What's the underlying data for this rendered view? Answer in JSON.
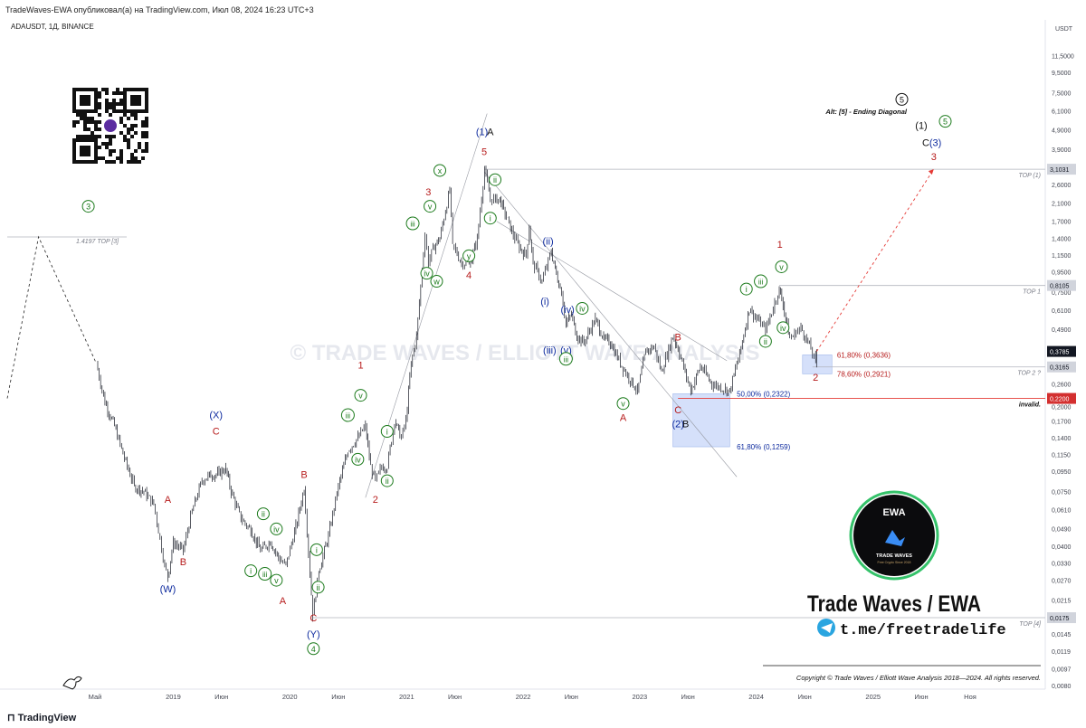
{
  "header": {
    "published_line": "TradeWaves-EWA опубликовал(а) на TradingView.com, Июл 08, 2024 16:23 UTC+3",
    "symbol_line": "ADAUSDT, 1Д, BINANCE"
  },
  "footer": {
    "tradingview_label": "TradingView"
  },
  "watermark": "© TRADE WAVES / ELLIOTT WAVE ANALYSIS",
  "branding": {
    "ewa_badge_title": "EWA",
    "ewa_badge_sub": "TRADE WAVES",
    "ewa_badge_tagline": "Free Crypto Since 2018",
    "trade_waves_title": "Trade Waves / EWA",
    "telegram_link": "t.me/freetradelife",
    "copyright": "Copyright © Trade Waves / Elliott Wave Analysis 2018—2024. All rights reserved."
  },
  "colors": {
    "candle": "#131722",
    "wave_red": "#b71c1c",
    "wave_blue": "#0d2a9e",
    "wave_green": "#1b7a1b",
    "level_line": "#b2b5be",
    "invalid_line": "#e53935",
    "fib_box": "#b3c7f5"
  },
  "chart_data": {
    "type": "candlestick",
    "symbol": "ADAUSDT",
    "timeframe": "1Д",
    "exchange": "BINANCE",
    "y_scale": "log",
    "y_unit": "USDT",
    "ylim": [
      0.008,
      16
    ],
    "y_ticks": [
      11.5,
      9.5,
      7.5,
      6.1,
      4.9,
      3.9,
      3.1,
      2.6,
      2.1,
      1.7,
      1.4,
      1.15,
      0.95,
      0.75,
      0.61,
      0.49,
      0.39,
      0.316,
      0.26,
      0.2,
      0.17,
      0.14,
      0.115,
      0.095,
      0.075,
      0.061,
      0.049,
      0.04,
      0.033,
      0.027,
      0.0215,
      0.0175,
      0.0145,
      0.0119,
      0.0097,
      0.008
    ],
    "y_tick_labels": [
      "11,5000",
      "9,5000",
      "7,5000",
      "6,1000",
      "4,9000",
      "3,9000",
      "3,1000",
      "2,6000",
      "2,1000",
      "1,7000",
      "1,4000",
      "1,1500",
      "0,9500",
      "0,7500",
      "0,6100",
      "0,4900",
      "0,3900",
      "0,3160",
      "0,2600",
      "0,2000",
      "0,1700",
      "0,1400",
      "0,1150",
      "0,0950",
      "0,0750",
      "0,0610",
      "0,0490",
      "0,0400",
      "0,0330",
      "0,0270",
      "0,0215",
      "0,0175",
      "0,0145",
      "0,0119",
      "0,0097",
      "0,0080"
    ],
    "x_ticks": [
      {
        "date": "2018-05-01",
        "label": "Май"
      },
      {
        "date": "2019-01-01",
        "label": "2019"
      },
      {
        "date": "2019-06-01",
        "label": "Июн"
      },
      {
        "date": "2020-01-01",
        "label": "2020"
      },
      {
        "date": "2020-06-01",
        "label": "Июн"
      },
      {
        "date": "2021-01-01",
        "label": "2021"
      },
      {
        "date": "2021-06-01",
        "label": "Июн"
      },
      {
        "date": "2022-01-01",
        "label": "2022"
      },
      {
        "date": "2022-06-01",
        "label": "Июн"
      },
      {
        "date": "2023-01-01",
        "label": "2023"
      },
      {
        "date": "2023-06-01",
        "label": "Июн"
      },
      {
        "date": "2024-01-01",
        "label": "2024"
      },
      {
        "date": "2024-06-01",
        "label": "Июн"
      },
      {
        "date": "2025-01-01",
        "label": "2025"
      },
      {
        "date": "2025-06-01",
        "label": "Июн"
      },
      {
        "date": "2025-11-01",
        "label": "Ноя"
      }
    ],
    "price_path": [
      [
        "2018-05-05",
        0.33
      ],
      [
        "2018-06-01",
        0.21
      ],
      [
        "2018-07-01",
        0.16
      ],
      [
        "2018-08-01",
        0.11
      ],
      [
        "2018-09-01",
        0.08
      ],
      [
        "2018-10-01",
        0.075
      ],
      [
        "2018-11-01",
        0.065
      ],
      [
        "2018-12-05",
        0.032
      ],
      [
        "2018-12-15",
        0.028
      ],
      [
        "2019-01-01",
        0.042
      ],
      [
        "2019-02-01",
        0.038
      ],
      [
        "2019-03-01",
        0.06
      ],
      [
        "2019-04-01",
        0.085
      ],
      [
        "2019-04-20",
        0.09
      ],
      [
        "2019-05-20",
        0.092
      ],
      [
        "2019-06-15",
        0.098
      ],
      [
        "2019-07-01",
        0.075
      ],
      [
        "2019-08-01",
        0.055
      ],
      [
        "2019-09-01",
        0.048
      ],
      [
        "2019-10-01",
        0.038
      ],
      [
        "2019-11-01",
        0.042
      ],
      [
        "2019-12-01",
        0.034
      ],
      [
        "2019-12-20",
        0.032
      ],
      [
        "2020-01-20",
        0.05
      ],
      [
        "2020-02-15",
        0.078
      ],
      [
        "2020-03-13",
        0.018
      ],
      [
        "2020-04-01",
        0.03
      ],
      [
        "2020-05-01",
        0.045
      ],
      [
        "2020-06-01",
        0.08
      ],
      [
        "2020-07-01",
        0.12
      ],
      [
        "2020-08-01",
        0.14
      ],
      [
        "2020-08-25",
        0.16
      ],
      [
        "2020-09-10",
        0.1
      ],
      [
        "2020-09-25",
        0.085
      ],
      [
        "2020-10-15",
        0.1
      ],
      [
        "2020-11-01",
        0.1
      ],
      [
        "2020-11-24",
        0.17
      ],
      [
        "2020-12-15",
        0.14
      ],
      [
        "2020-12-30",
        0.17
      ],
      [
        "2021-01-15",
        0.33
      ],
      [
        "2021-02-01",
        0.45
      ],
      [
        "2021-02-27",
        1.45
      ],
      [
        "2021-03-10",
        1.05
      ],
      [
        "2021-03-25",
        1.25
      ],
      [
        "2021-04-15",
        1.4
      ],
      [
        "2021-05-16",
        2.45
      ],
      [
        "2021-05-25",
        1.3
      ],
      [
        "2021-06-22",
        1.05
      ],
      [
        "2021-07-20",
        1.05
      ],
      [
        "2021-08-10",
        1.4
      ],
      [
        "2021-09-02",
        3.1
      ],
      [
        "2021-09-20",
        2.2
      ],
      [
        "2021-10-01",
        2.2
      ],
      [
        "2021-10-20",
        2.2
      ],
      [
        "2021-11-01",
        1.95
      ],
      [
        "2021-12-01",
        1.45
      ],
      [
        "2021-12-20",
        1.25
      ],
      [
        "2022-01-10",
        1.15
      ],
      [
        "2022-01-20",
        1.6
      ],
      [
        "2022-02-01",
        1.05
      ],
      [
        "2022-03-01",
        0.85
      ],
      [
        "2022-03-30",
        1.2
      ],
      [
        "2022-04-15",
        0.92
      ],
      [
        "2022-05-01",
        0.75
      ],
      [
        "2022-05-15",
        0.52
      ],
      [
        "2022-06-01",
        0.58
      ],
      [
        "2022-06-18",
        0.45
      ],
      [
        "2022-07-10",
        0.42
      ],
      [
        "2022-08-15",
        0.55
      ],
      [
        "2022-09-10",
        0.44
      ],
      [
        "2022-10-01",
        0.42
      ],
      [
        "2022-11-10",
        0.31
      ],
      [
        "2022-12-25",
        0.24
      ],
      [
        "2023-01-20",
        0.38
      ],
      [
        "2023-02-15",
        0.4
      ],
      [
        "2023-03-10",
        0.3
      ],
      [
        "2023-04-15",
        0.45
      ],
      [
        "2023-05-01",
        0.39
      ],
      [
        "2023-06-10",
        0.24
      ],
      [
        "2023-07-10",
        0.32
      ],
      [
        "2023-08-15",
        0.26
      ],
      [
        "2023-10-10",
        0.24
      ],
      [
        "2023-11-10",
        0.37
      ],
      [
        "2023-12-10",
        0.62
      ],
      [
        "2024-01-15",
        0.52
      ],
      [
        "2024-01-30",
        0.48
      ],
      [
        "2024-03-13",
        0.78
      ],
      [
        "2024-03-25",
        0.65
      ],
      [
        "2024-04-15",
        0.44
      ],
      [
        "2024-05-05",
        0.47
      ],
      [
        "2024-05-20",
        0.5
      ],
      [
        "2024-06-20",
        0.39
      ],
      [
        "2024-07-05",
        0.33
      ],
      [
        "2024-07-08",
        0.3785
      ]
    ],
    "current_price": 0.3785,
    "price_labels": [
      {
        "text": "USDT",
        "kind": "unit"
      },
      {
        "text": "3,1031",
        "price": 3.1031,
        "kind": "level"
      },
      {
        "text": "0,8105",
        "price": 0.8105,
        "kind": "level"
      },
      {
        "text": "0,3785",
        "price": 0.3785,
        "kind": "current"
      },
      {
        "text": "0,3165",
        "price": 0.3165,
        "kind": "level"
      },
      {
        "text": "0,2200",
        "price": 0.22,
        "kind": "invalid"
      },
      {
        "text": "0,0175",
        "price": 0.0175,
        "kind": "level"
      }
    ],
    "levels": [
      {
        "label": "1.4197 TOP [3]",
        "price": 1.4197
      },
      {
        "label": "TOP (1)",
        "price": 3.1031
      },
      {
        "label": "TOP 1",
        "price": 0.8105
      },
      {
        "label": "TOP 2 ?",
        "price": 0.3165
      },
      {
        "label": "invalid.",
        "price": 0.22
      },
      {
        "label": "TOP [4]",
        "price": 0.0175
      }
    ],
    "fib_zones": [
      {
        "from": 0.3636,
        "to": 0.2921,
        "upper_label": "61,80% (0,3636)",
        "lower_label": "78,60% (0,2921)"
      },
      {
        "from": 0.2322,
        "to": 0.1259,
        "upper_label": "50,00% (0,2322)",
        "lower_label": "61,80% (0,1259)"
      }
    ],
    "annotation_title": "Alt: [5] - Ending Diagonal",
    "wave_labels": [
      {
        "text": "3",
        "color": "green",
        "circle": true,
        "date": "2018-04-10",
        "price": 1.95
      },
      {
        "text": "(W)",
        "color": "blue",
        "date": "2018-12-15",
        "price": 0.0235
      },
      {
        "text": "A",
        "color": "red",
        "date": "2018-12-15",
        "price": 0.066
      },
      {
        "text": "B",
        "color": "red",
        "date": "2019-02-01",
        "price": 0.032
      },
      {
        "text": "(X)",
        "color": "blue",
        "date": "2019-05-15",
        "price": 0.175
      },
      {
        "text": "C",
        "color": "red",
        "date": "2019-05-15",
        "price": 0.145
      },
      {
        "text": "i",
        "color": "green",
        "circle": true,
        "date": "2019-09-01",
        "price": 0.029
      },
      {
        "text": "ii",
        "color": "green",
        "circle": true,
        "date": "2019-10-10",
        "price": 0.056
      },
      {
        "text": "iii",
        "color": "green",
        "circle": true,
        "date": "2019-10-15",
        "price": 0.028
      },
      {
        "text": "iv",
        "color": "green",
        "circle": true,
        "date": "2019-11-20",
        "price": 0.047
      },
      {
        "text": "v",
        "color": "green",
        "circle": true,
        "date": "2019-11-20",
        "price": 0.026
      },
      {
        "text": "A",
        "color": "red",
        "date": "2019-12-10",
        "price": 0.0205
      },
      {
        "text": "B",
        "color": "red",
        "date": "2020-02-15",
        "price": 0.088
      },
      {
        "text": "C",
        "color": "red",
        "date": "2020-03-15",
        "price": 0.0168
      },
      {
        "text": "(Y)",
        "color": "blue",
        "date": "2020-03-15",
        "price": 0.0139
      },
      {
        "text": "4",
        "color": "green",
        "circle": true,
        "date": "2020-03-15",
        "price": 0.0118
      },
      {
        "text": "i",
        "color": "green",
        "circle": true,
        "date": "2020-03-25",
        "price": 0.037
      },
      {
        "text": "ii",
        "color": "green",
        "circle": true,
        "date": "2020-03-30",
        "price": 0.024
      },
      {
        "text": "1",
        "color": "red",
        "date": "2020-08-10",
        "price": 0.31
      },
      {
        "text": "v",
        "color": "green",
        "circle": true,
        "date": "2020-08-10",
        "price": 0.22
      },
      {
        "text": "iii",
        "color": "green",
        "circle": true,
        "date": "2020-07-01",
        "price": 0.175
      },
      {
        "text": "iv",
        "color": "green",
        "circle": true,
        "date": "2020-08-01",
        "price": 0.105
      },
      {
        "text": "i",
        "color": "green",
        "circle": true,
        "date": "2020-11-01",
        "price": 0.145
      },
      {
        "text": "ii",
        "color": "green",
        "circle": true,
        "date": "2020-11-01",
        "price": 0.082
      },
      {
        "text": "2",
        "color": "red",
        "date": "2020-09-25",
        "price": 0.066
      },
      {
        "text": "iii",
        "color": "green",
        "circle": true,
        "date": "2021-01-20",
        "price": 1.6
      },
      {
        "text": "iv",
        "color": "green",
        "circle": true,
        "date": "2021-03-05",
        "price": 0.9
      },
      {
        "text": "v",
        "color": "green",
        "circle": true,
        "date": "2021-03-15",
        "price": 1.95
      },
      {
        "text": "w",
        "color": "green",
        "circle": true,
        "date": "2021-04-05",
        "price": 0.82
      },
      {
        "text": "x",
        "color": "green",
        "circle": true,
        "date": "2021-04-15",
        "price": 2.95
      },
      {
        "text": "3",
        "color": "red",
        "date": "2021-03-10",
        "price": 2.3
      },
      {
        "text": "y",
        "color": "green",
        "circle": true,
        "date": "2021-07-15",
        "price": 1.1
      },
      {
        "text": "4",
        "color": "red",
        "date": "2021-07-15",
        "price": 0.88
      },
      {
        "text": "5",
        "color": "red",
        "date": "2021-09-01",
        "price": 3.65
      },
      {
        "text": "(1)",
        "color": "blue",
        "date": "2021-08-25",
        "price": 4.6
      },
      {
        "text": "A",
        "color": "black",
        "date": "2021-09-20",
        "price": 4.6
      },
      {
        "text": "ii",
        "color": "green",
        "circle": true,
        "date": "2021-10-05",
        "price": 2.65
      },
      {
        "text": "i",
        "color": "green",
        "circle": true,
        "date": "2021-09-20",
        "price": 1.7
      },
      {
        "text": "(ii)",
        "color": "blue",
        "date": "2022-03-20",
        "price": 1.3
      },
      {
        "text": "(i)",
        "color": "blue",
        "date": "2022-03-10",
        "price": 0.65
      },
      {
        "text": "(iv)",
        "color": "blue",
        "date": "2022-05-20",
        "price": 0.59
      },
      {
        "text": "iv",
        "color": "green",
        "circle": true,
        "date": "2022-07-05",
        "price": 0.6
      },
      {
        "text": "(iii)",
        "color": "blue",
        "date": "2022-03-25",
        "price": 0.37
      },
      {
        "text": "(v)",
        "color": "blue",
        "date": "2022-05-15",
        "price": 0.37
      },
      {
        "text": "iii",
        "color": "green",
        "circle": true,
        "date": "2022-05-15",
        "price": 0.335
      },
      {
        "text": "v",
        "color": "green",
        "circle": true,
        "date": "2022-11-10",
        "price": 0.2
      },
      {
        "text": "A",
        "color": "red",
        "date": "2022-11-10",
        "price": 0.17
      },
      {
        "text": "B",
        "color": "red",
        "date": "2023-05-01",
        "price": 0.43
      },
      {
        "text": "C",
        "color": "red",
        "date": "2023-05-01",
        "price": 0.185
      },
      {
        "text": "(2)",
        "color": "blue",
        "date": "2023-05-01",
        "price": 0.158
      },
      {
        "text": "B",
        "color": "black",
        "date": "2023-05-25",
        "price": 0.158
      },
      {
        "text": "i",
        "color": "green",
        "circle": true,
        "date": "2023-12-01",
        "price": 0.75
      },
      {
        "text": "iii",
        "color": "green",
        "circle": true,
        "date": "2024-01-15",
        "price": 0.82
      },
      {
        "text": "v",
        "color": "green",
        "circle": true,
        "date": "2024-03-20",
        "price": 0.97
      },
      {
        "text": "1",
        "color": "red",
        "date": "2024-03-15",
        "price": 1.25
      },
      {
        "text": "iv",
        "color": "green",
        "circle": true,
        "date": "2024-03-25",
        "price": 0.48
      },
      {
        "text": "ii",
        "color": "green",
        "circle": true,
        "date": "2024-01-30",
        "price": 0.41
      },
      {
        "text": "2",
        "color": "red",
        "date": "2024-07-05",
        "price": 0.27
      },
      {
        "text": "5",
        "color": "black",
        "circle": true,
        "date": "2025-04-01",
        "price": 6.7
      },
      {
        "text": "(1)",
        "color": "black",
        "date": "2025-06-01",
        "price": 4.95
      },
      {
        "text": "5",
        "color": "green",
        "circle": true,
        "date": "2025-08-15",
        "price": 5.2
      },
      {
        "text": "C",
        "color": "black",
        "date": "2025-06-15",
        "price": 4.05
      },
      {
        "text": "(3)",
        "color": "blue",
        "date": "2025-07-15",
        "price": 4.05
      },
      {
        "text": "3",
        "color": "red",
        "date": "2025-07-10",
        "price": 3.45
      }
    ],
    "projection": [
      [
        "2024-07-08",
        0.3785
      ],
      [
        "2025-07-10",
        3.1031
      ]
    ],
    "channel_lines": [
      {
        "from": [
          "2020-08-25",
          0.07
        ],
        "to": [
          "2021-09-10",
          5.9
        ]
      },
      {
        "from": [
          "2021-09-02",
          3.0
        ],
        "to": [
          "2023-11-01",
          0.089
        ]
      },
      {
        "from": [
          "2021-10-10",
          1.7
        ],
        "to": [
          "2023-10-01",
          0.34
        ]
      }
    ]
  }
}
